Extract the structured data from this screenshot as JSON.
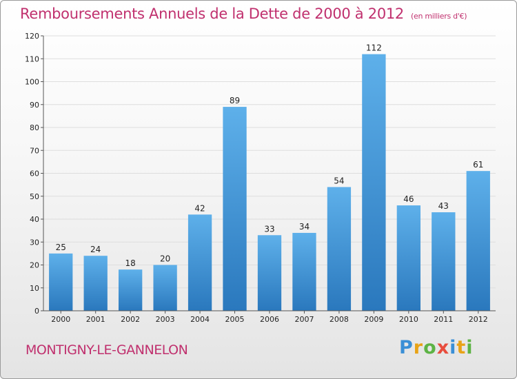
{
  "header": {
    "title": "Remboursements Annuels de la Dette de 2000 à 2012",
    "subtitle": "(en milliers d'€)"
  },
  "footer": {
    "commune": "MONTIGNY-LE-GANNELON",
    "logo_letters": [
      "P",
      "r",
      "o",
      "x",
      "i",
      "t",
      "i"
    ],
    "logo_colors": [
      "#3a8fd6",
      "#e8a317",
      "#5db345",
      "#e84d3d",
      "#3a8fd6",
      "#e8a317",
      "#5db345"
    ]
  },
  "chart_data": {
    "type": "bar",
    "title": "Remboursements Annuels de la Dette de 2000 à 2012",
    "categories": [
      "2000",
      "2001",
      "2002",
      "2003",
      "2004",
      "2005",
      "2006",
      "2007",
      "2008",
      "2009",
      "2010",
      "2011",
      "2012"
    ],
    "values": [
      25,
      24,
      18,
      20,
      42,
      89,
      33,
      34,
      54,
      112,
      46,
      43,
      61
    ],
    "ylim": [
      0,
      120
    ],
    "yticks": [
      0,
      10,
      20,
      30,
      40,
      50,
      60,
      70,
      80,
      90,
      100,
      110,
      120
    ],
    "grid": true,
    "bar_color_top": "#5eb0ea",
    "bar_color_bottom": "#2a78bd",
    "gridline_color": "#dddddd"
  }
}
